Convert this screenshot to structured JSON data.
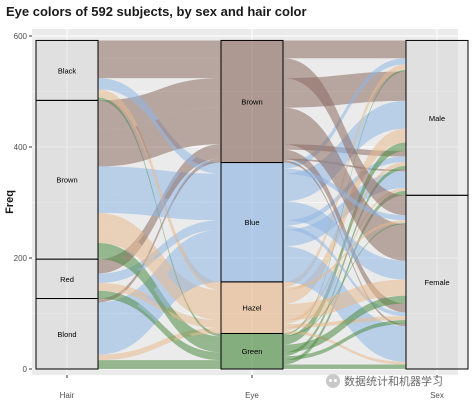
{
  "chart_data": {
    "type": "alluvial",
    "title": "Eye colors of 592 subjects, by sex and hair color",
    "xlabel": "",
    "ylabel": "Freq",
    "ylim": [
      0,
      600
    ],
    "yticks": [
      0,
      200,
      400,
      600
    ],
    "axes": [
      "Hair",
      "Eye",
      "Sex"
    ],
    "fill_by": "Eye",
    "grid": true,
    "legend": "none",
    "strata": {
      "Hair": [
        {
          "label": "Black",
          "value": 108
        },
        {
          "label": "Brown",
          "value": 286
        },
        {
          "label": "Red",
          "value": 71
        },
        {
          "label": "Blond",
          "value": 127
        }
      ],
      "Eye": [
        {
          "label": "Brown",
          "value": 220
        },
        {
          "label": "Blue",
          "value": 215
        },
        {
          "label": "Hazel",
          "value": 93
        },
        {
          "label": "Green",
          "value": 64
        }
      ],
      "Sex": [
        {
          "label": "Male",
          "value": 279
        },
        {
          "label": "Female",
          "value": 313
        }
      ]
    },
    "flows": [
      {
        "Hair": "Black",
        "Eye": "Brown",
        "Sex": "Male",
        "freq": 32
      },
      {
        "Hair": "Brown",
        "Eye": "Brown",
        "Sex": "Male",
        "freq": 53
      },
      {
        "Hair": "Red",
        "Eye": "Brown",
        "Sex": "Male",
        "freq": 10
      },
      {
        "Hair": "Blond",
        "Eye": "Brown",
        "Sex": "Male",
        "freq": 3
      },
      {
        "Hair": "Black",
        "Eye": "Blue",
        "Sex": "Male",
        "freq": 11
      },
      {
        "Hair": "Brown",
        "Eye": "Blue",
        "Sex": "Male",
        "freq": 50
      },
      {
        "Hair": "Red",
        "Eye": "Blue",
        "Sex": "Male",
        "freq": 10
      },
      {
        "Hair": "Blond",
        "Eye": "Blue",
        "Sex": "Male",
        "freq": 30
      },
      {
        "Hair": "Black",
        "Eye": "Hazel",
        "Sex": "Male",
        "freq": 10
      },
      {
        "Hair": "Brown",
        "Eye": "Hazel",
        "Sex": "Male",
        "freq": 25
      },
      {
        "Hair": "Red",
        "Eye": "Hazel",
        "Sex": "Male",
        "freq": 7
      },
      {
        "Hair": "Blond",
        "Eye": "Hazel",
        "Sex": "Male",
        "freq": 5
      },
      {
        "Hair": "Black",
        "Eye": "Green",
        "Sex": "Male",
        "freq": 3
      },
      {
        "Hair": "Brown",
        "Eye": "Green",
        "Sex": "Male",
        "freq": 15
      },
      {
        "Hair": "Red",
        "Eye": "Green",
        "Sex": "Male",
        "freq": 7
      },
      {
        "Hair": "Blond",
        "Eye": "Green",
        "Sex": "Male",
        "freq": 8
      },
      {
        "Hair": "Black",
        "Eye": "Brown",
        "Sex": "Female",
        "freq": 36
      },
      {
        "Hair": "Brown",
        "Eye": "Brown",
        "Sex": "Female",
        "freq": 66
      },
      {
        "Hair": "Red",
        "Eye": "Brown",
        "Sex": "Female",
        "freq": 16
      },
      {
        "Hair": "Blond",
        "Eye": "Brown",
        "Sex": "Female",
        "freq": 4
      },
      {
        "Hair": "Black",
        "Eye": "Blue",
        "Sex": "Female",
        "freq": 9
      },
      {
        "Hair": "Brown",
        "Eye": "Blue",
        "Sex": "Female",
        "freq": 34
      },
      {
        "Hair": "Red",
        "Eye": "Blue",
        "Sex": "Female",
        "freq": 7
      },
      {
        "Hair": "Blond",
        "Eye": "Blue",
        "Sex": "Female",
        "freq": 64
      },
      {
        "Hair": "Black",
        "Eye": "Hazel",
        "Sex": "Female",
        "freq": 5
      },
      {
        "Hair": "Brown",
        "Eye": "Hazel",
        "Sex": "Female",
        "freq": 29
      },
      {
        "Hair": "Red",
        "Eye": "Hazel",
        "Sex": "Female",
        "freq": 7
      },
      {
        "Hair": "Blond",
        "Eye": "Hazel",
        "Sex": "Female",
        "freq": 5
      },
      {
        "Hair": "Black",
        "Eye": "Green",
        "Sex": "Female",
        "freq": 2
      },
      {
        "Hair": "Brown",
        "Eye": "Green",
        "Sex": "Female",
        "freq": 14
      },
      {
        "Hair": "Red",
        "Eye": "Green",
        "Sex": "Female",
        "freq": 7
      },
      {
        "Hair": "Blond",
        "Eye": "Green",
        "Sex": "Female",
        "freq": 8
      }
    ],
    "colors": {
      "Brown": "#8c6b62",
      "Blue": "#8fb6e3",
      "Hazel": "#e8b98e",
      "Green": "#4e8d44",
      "panel_background": "#ebebeb",
      "grid": "#ffffff",
      "stratum_fill": "#d3d3d3"
    }
  },
  "watermark": {
    "text": "数据统计和机器学习",
    "icon": "wechat-icon"
  }
}
